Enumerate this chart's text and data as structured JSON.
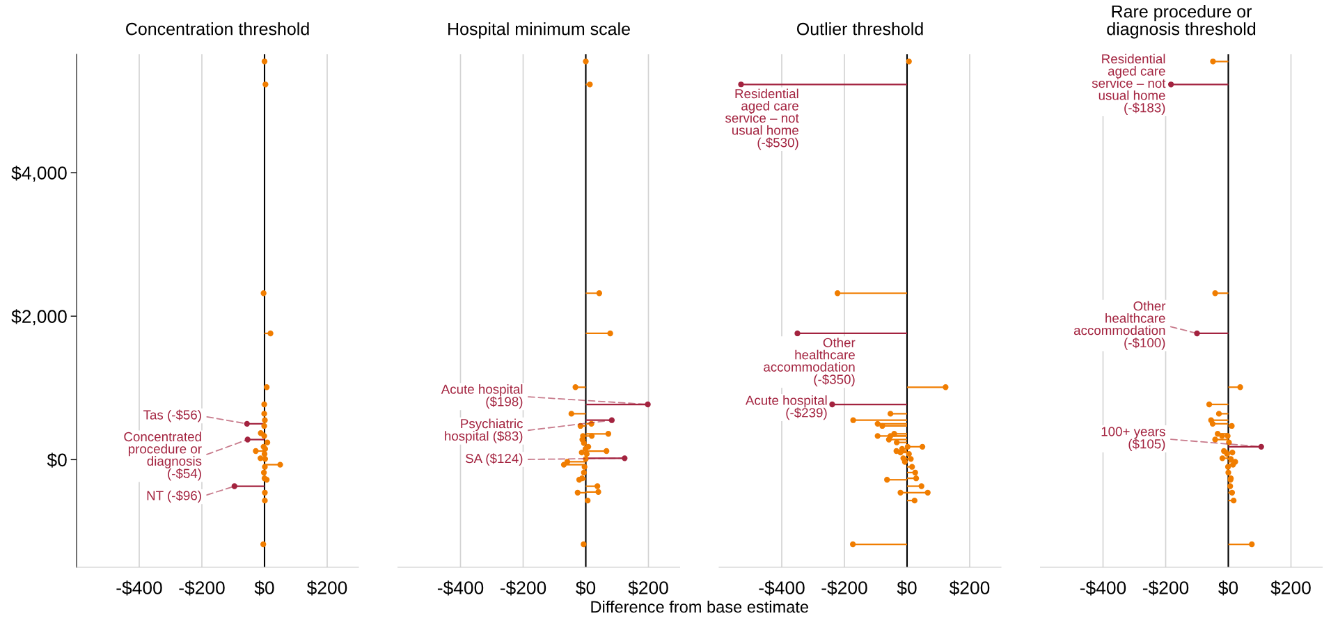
{
  "chart_data": [
    {
      "type": "lollipop",
      "orientation": "horizontal",
      "title": "Concentration threshold",
      "xlim": [
        -600,
        300
      ],
      "xticks": [
        {
          "value": -400,
          "label": "-$400"
        },
        {
          "value": -200,
          "label": "-$200"
        },
        {
          "value": 0,
          "label": "$0"
        },
        {
          "value": 200,
          "label": "$200"
        }
      ],
      "ylim": [
        -1500,
        5650
      ],
      "yticks": [
        {
          "value": 0,
          "label": "$0"
        },
        {
          "value": 2000,
          "label": "$2,000"
        },
        {
          "value": 4000,
          "label": "$4,000"
        }
      ],
      "grid": "x",
      "series": [
        {
          "color": "#f07d00",
          "x": [
            5550,
            5230,
            2320,
            1760,
            1010,
            770,
            640,
            550,
            470,
            370,
            330,
            240,
            180,
            150,
            120,
            80,
            20,
            10,
            -70,
            -100,
            -180,
            -260,
            -280,
            -460,
            -570,
            -1180
          ],
          "values": [
            0,
            3,
            -3,
            19,
            7,
            -1,
            -1,
            1,
            -1,
            -12,
            -1,
            9,
            -3,
            2,
            -28,
            0,
            -13,
            2,
            50,
            1,
            -2,
            0,
            7,
            1,
            1,
            -4
          ]
        },
        {
          "color": "#a3233f",
          "x": [
            500,
            280,
            -370
          ],
          "values": [
            -56,
            -54,
            -96
          ]
        }
      ],
      "annotations": [
        {
          "text": "Tas (-$56)",
          "x": -56,
          "y": 500
        },
        {
          "text": "Concentrated\nprocedure or\ndiagnosis\n(-$54)",
          "x": -54,
          "y": 280
        },
        {
          "text": "NT (-$96)",
          "x": -96,
          "y": -370
        }
      ]
    },
    {
      "type": "lollipop",
      "orientation": "horizontal",
      "title": "Hospital minimum scale",
      "xlabel": "Difference from base estimate",
      "xlim": [
        -600,
        300
      ],
      "xticks": [
        {
          "value": -400,
          "label": "-$400"
        },
        {
          "value": -200,
          "label": "-$200"
        },
        {
          "value": 0,
          "label": "$0"
        },
        {
          "value": 200,
          "label": "$200"
        }
      ],
      "ylim": [
        -1500,
        5650
      ],
      "tick_labels": "x",
      "grid": "x",
      "series": [
        {
          "color": "#f07d00",
          "x": [
            5550,
            5230,
            2320,
            1760,
            1010,
            640,
            500,
            470,
            360,
            330,
            330,
            280,
            230,
            180,
            150,
            120,
            100,
            80,
            10,
            -30,
            -70,
            -100,
            -180,
            -260,
            -280,
            -370,
            -450,
            -460,
            -570,
            -1180
          ],
          "values": [
            0,
            13,
            43,
            78,
            -33,
            -46,
            18,
            -17,
            72,
            19,
            -9,
            -11,
            -6,
            8,
            -1,
            66,
            -13,
            3,
            0,
            -59,
            -70,
            -4,
            -6,
            -12,
            -21,
            37,
            40,
            -26,
            6,
            -7
          ]
        },
        {
          "color": "#a3233f",
          "x": [
            770,
            550,
            20
          ],
          "values": [
            198,
            83,
            124
          ]
        }
      ],
      "annotations": [
        {
          "text": "Acute hospital\n($198)",
          "x": 198,
          "y": 770
        },
        {
          "text": "Psychiatric\nhospital ($83)",
          "x": 83,
          "y": 550
        },
        {
          "text": "SA ($124)",
          "x": 124,
          "y": 20
        }
      ]
    },
    {
      "type": "lollipop",
      "orientation": "horizontal",
      "title": "Outlier threshold",
      "xlim": [
        -600,
        300
      ],
      "xticks": [
        {
          "value": -400,
          "label": "-$400"
        },
        {
          "value": -200,
          "label": "-$200"
        },
        {
          "value": 0,
          "label": "$0"
        },
        {
          "value": 200,
          "label": "$200"
        }
      ],
      "ylim": [
        -1500,
        5650
      ],
      "tick_labels": "x",
      "grid": "x",
      "series": [
        {
          "color": "#f07d00",
          "x": [
            5550,
            2320,
            1010,
            640,
            550,
            500,
            470,
            360,
            330,
            330,
            280,
            240,
            180,
            180,
            150,
            120,
            100,
            80,
            10,
            20,
            -30,
            -100,
            -180,
            -260,
            -280,
            -370,
            -460,
            -460,
            -570,
            -1180
          ],
          "values": [
            6,
            -222,
            123,
            -53,
            -172,
            -94,
            -79,
            -41,
            -94,
            -53,
            -58,
            -33,
            2,
            49,
            -16,
            -34,
            -21,
            6,
            12,
            -12,
            -7,
            16,
            26,
            29,
            -64,
            46,
            66,
            -21,
            24,
            -173
          ]
        },
        {
          "color": "#a3233f",
          "x": [
            5230,
            1760,
            770
          ],
          "values": [
            -530,
            -350,
            -239
          ]
        }
      ],
      "annotations": [
        {
          "text": "Residential\naged care\nservice – not\nusual home\n(-$530)",
          "x": -530,
          "y": 5230
        },
        {
          "text": "Other\nhealthcare\naccommodation\n(-$350)",
          "x": -350,
          "y": 1760
        },
        {
          "text": "Acute hospital\n(-$239)",
          "x": -239,
          "y": 770
        }
      ]
    },
    {
      "type": "lollipop",
      "orientation": "horizontal",
      "title": "Rare procedure or\ndiagnosis threshold",
      "xlim": [
        -600,
        300
      ],
      "xticks": [
        {
          "value": -400,
          "label": "-$400"
        },
        {
          "value": -200,
          "label": "-$200"
        },
        {
          "value": 0,
          "label": "$0"
        },
        {
          "value": 200,
          "label": "$200"
        }
      ],
      "ylim": [
        -1500,
        5650
      ],
      "tick_labels": "x",
      "grid": "x",
      "series": [
        {
          "color": "#f07d00",
          "x": [
            5550,
            2320,
            1010,
            770,
            640,
            550,
            500,
            470,
            360,
            330,
            330,
            280,
            240,
            120,
            100,
            80,
            20,
            10,
            -30,
            -70,
            -100,
            -180,
            -260,
            -280,
            -370,
            -460,
            -570,
            -1180
          ],
          "values": [
            -49,
            -42,
            38,
            -61,
            -30,
            -55,
            -50,
            11,
            -34,
            -20,
            -2,
            -42,
            2,
            -14,
            13,
            -4,
            -19,
            8,
            22,
            15,
            -1,
            0,
            8,
            7,
            6,
            12,
            17,
            75
          ]
        },
        {
          "color": "#a3233f",
          "x": [
            5230,
            1760,
            180
          ],
          "values": [
            -183,
            -100,
            105
          ]
        }
      ],
      "annotations": [
        {
          "text": "Residential\naged care\nservice – not\nusual home\n(-$183)",
          "x": -183,
          "y": 5230
        },
        {
          "text": "Other\nhealthcare\naccommodation\n(-$100)",
          "x": -100,
          "y": 1760
        },
        {
          "text": "100+ years\n($105)",
          "x": 105,
          "y": 180
        }
      ]
    }
  ]
}
